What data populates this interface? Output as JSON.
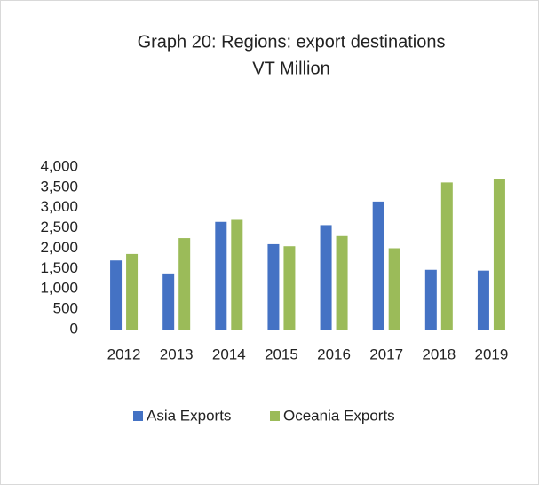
{
  "chart_data": {
    "type": "bar",
    "title": "Graph 20:  Regions: export destinations",
    "subtitle": "VT Million",
    "categories": [
      "2012",
      "2013",
      "2014",
      "2015",
      "2016",
      "2017",
      "2018",
      "2019"
    ],
    "series": [
      {
        "name": "Asia Exports",
        "color": "#4472c4",
        "values": [
          1700,
          1380,
          2650,
          2100,
          2570,
          3150,
          1470,
          1450
        ]
      },
      {
        "name": "Oceania Exports",
        "color": "#9bbb59",
        "values": [
          1860,
          2250,
          2700,
          2050,
          2300,
          2000,
          3620,
          3700
        ]
      }
    ],
    "ylim": [
      0,
      4000
    ],
    "yticks": [
      0,
      500,
      {
        "value": 1000,
        "label": "1,000"
      },
      {
        "value": 1500,
        "label": "1,500"
      },
      {
        "value": 2000,
        "label": "2,000"
      },
      {
        "value": 2500,
        "label": "2,500"
      },
      {
        "value": 3000,
        "label": "3,000"
      },
      {
        "value": 3500,
        "label": "3,500"
      },
      {
        "value": 4000,
        "label": "4,000"
      }
    ],
    "grid": false,
    "legend": "bottom"
  }
}
